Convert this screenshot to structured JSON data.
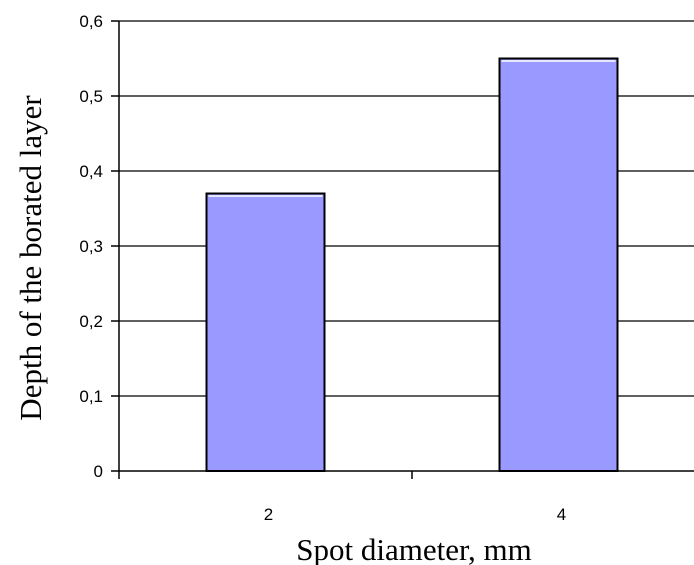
{
  "chart_data": {
    "type": "bar",
    "categories": [
      "2",
      "4"
    ],
    "values": [
      0.37,
      0.55
    ],
    "xlabel": "Spot diameter, mm",
    "ylabel": "Depth of the borated layer",
    "ylim": [
      0,
      0.6
    ],
    "yticks": [
      "0",
      "0,1",
      "0,2",
      "0,3",
      "0,4",
      "0,5",
      "0,6"
    ],
    "grid": true,
    "legend": "none",
    "bar_color": "#9999ff",
    "bar_outline": "#000000"
  }
}
